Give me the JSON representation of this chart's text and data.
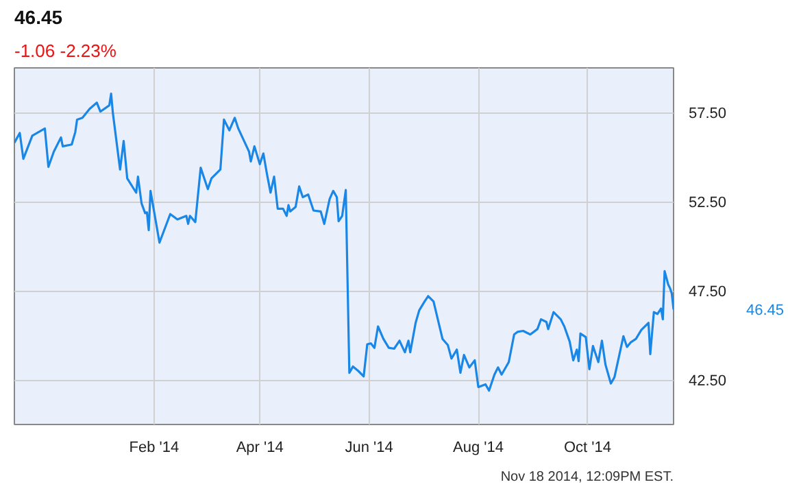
{
  "chart_data": {
    "type": "line",
    "title": "46.45",
    "subtitle": "-1.06  -2.23%",
    "x": [
      "2013-11-15",
      "2013-11-18",
      "2013-11-20",
      "2013-11-25",
      "2013-12-02",
      "2013-12-04",
      "2013-12-07",
      "2013-12-11",
      "2013-12-12",
      "2013-12-17",
      "2013-12-19",
      "2013-12-20",
      "2013-12-23",
      "2013-12-27",
      "2013-12-31",
      "2014-01-02",
      "2014-01-07",
      "2014-01-08",
      "2014-01-09",
      "2014-01-13",
      "2014-01-15",
      "2014-01-17",
      "2014-01-22",
      "2014-01-23",
      "2014-01-25",
      "2014-01-27",
      "2014-01-28",
      "2014-01-29",
      "2014-01-30",
      "2014-02-04",
      "2014-02-10",
      "2014-02-14",
      "2014-02-19",
      "2014-02-20",
      "2014-02-21",
      "2014-02-24",
      "2014-02-27",
      "2014-03-03",
      "2014-03-05",
      "2014-03-10",
      "2014-03-12",
      "2014-03-15",
      "2014-03-18",
      "2014-03-20",
      "2014-03-26",
      "2014-03-27",
      "2014-03-29",
      "2014-04-01",
      "2014-04-03",
      "2014-04-05",
      "2014-04-07",
      "2014-04-09",
      "2014-04-11",
      "2014-04-14",
      "2014-04-16",
      "2014-04-17",
      "2014-04-18",
      "2014-04-21",
      "2014-04-23",
      "2014-04-25",
      "2014-04-28",
      "2014-05-01",
      "2014-05-05",
      "2014-05-07",
      "2014-05-10",
      "2014-05-12",
      "2014-05-14",
      "2014-05-15",
      "2014-05-17",
      "2014-05-19",
      "2014-05-21",
      "2014-05-23",
      "2014-05-26",
      "2014-05-29",
      "2014-05-31",
      "2014-06-02",
      "2014-06-04",
      "2014-06-06",
      "2014-06-09",
      "2014-06-12",
      "2014-06-15",
      "2014-06-18",
      "2014-06-21",
      "2014-06-23",
      "2014-06-24",
      "2014-06-27",
      "2014-06-29",
      "2014-07-02",
      "2014-07-04",
      "2014-07-07",
      "2014-07-12",
      "2014-07-15",
      "2014-07-17",
      "2014-07-20",
      "2014-07-22",
      "2014-07-24",
      "2014-07-27",
      "2014-07-30",
      "2014-08-01",
      "2014-08-05",
      "2014-08-07",
      "2014-08-10",
      "2014-08-12",
      "2014-08-14",
      "2014-08-18",
      "2014-08-21",
      "2014-08-23",
      "2014-08-26",
      "2014-08-30",
      "2014-09-03",
      "2014-09-05",
      "2014-09-08",
      "2014-09-09",
      "2014-09-12",
      "2014-09-16",
      "2014-09-18",
      "2014-09-21",
      "2014-09-23",
      "2014-09-25",
      "2014-09-26",
      "2014-09-27",
      "2014-09-30",
      "2014-10-02",
      "2014-10-04",
      "2014-10-07",
      "2014-10-09",
      "2014-10-11",
      "2014-10-14",
      "2014-10-16",
      "2014-10-21",
      "2014-10-23",
      "2014-10-25",
      "2014-10-28",
      "2014-10-31",
      "2014-11-04",
      "2014-11-05",
      "2014-11-07",
      "2014-11-09",
      "2014-11-11",
      "2014-11-12",
      "2014-11-13",
      "2014-11-15",
      "2014-11-16",
      "2014-11-17",
      "2014-11-18"
    ],
    "series": [
      {
        "color": "#1a87e6",
        "values": [
          55.8,
          56.35,
          54.9,
          56.2,
          56.6,
          54.45,
          55.3,
          56.1,
          55.6,
          55.7,
          56.4,
          57.1,
          57.2,
          57.7,
          58.05,
          57.55,
          57.9,
          58.55,
          57.45,
          54.3,
          55.9,
          53.8,
          53.0,
          53.9,
          52.4,
          51.85,
          51.9,
          50.9,
          53.1,
          50.2,
          51.8,
          51.5,
          51.7,
          51.25,
          51.7,
          51.35,
          54.4,
          53.2,
          53.8,
          54.3,
          57.1,
          56.5,
          57.2,
          56.6,
          55.3,
          54.75,
          55.6,
          54.6,
          55.2,
          54.05,
          53.0,
          53.9,
          52.1,
          52.1,
          51.7,
          52.3,
          51.95,
          52.2,
          53.35,
          52.75,
          52.9,
          52.0,
          51.95,
          51.25,
          52.65,
          53.1,
          52.75,
          51.4,
          51.7,
          53.15,
          42.9,
          43.25,
          43.0,
          42.7,
          44.5,
          44.55,
          44.3,
          45.5,
          44.8,
          44.3,
          44.25,
          44.7,
          44.05,
          44.7,
          44.05,
          45.7,
          46.4,
          46.9,
          47.2,
          46.9,
          44.8,
          44.45,
          43.7,
          44.2,
          42.9,
          43.9,
          43.2,
          43.6,
          42.1,
          42.25,
          41.9,
          42.8,
          43.2,
          42.8,
          43.5,
          45.05,
          45.2,
          45.25,
          45.05,
          45.35,
          45.9,
          45.75,
          45.35,
          46.3,
          45.9,
          45.5,
          44.65,
          43.6,
          44.2,
          43.55,
          45.1,
          44.9,
          43.1,
          44.4,
          43.5,
          44.7,
          43.35,
          42.3,
          42.65,
          44.95,
          44.35,
          44.6,
          44.8,
          45.3,
          45.7,
          43.95,
          46.3,
          46.2,
          46.5,
          45.9,
          48.6,
          47.85,
          47.65,
          47.35,
          46.45
        ]
      }
    ],
    "xlim": [
      "2013-11-15",
      "2014-11-18"
    ],
    "xticks": [
      {
        "value": "2014-02-01",
        "label": "Feb '14"
      },
      {
        "value": "2014-04-01",
        "label": "Apr '14"
      },
      {
        "value": "2014-06-01",
        "label": "Jun '14"
      },
      {
        "value": "2014-08-01",
        "label": "Aug '14"
      },
      {
        "value": "2014-10-01",
        "label": "Oct '14"
      }
    ],
    "ylim": [
      40,
      60
    ],
    "yticks": [
      {
        "value": 42.5,
        "label": "42.50"
      },
      {
        "value": 47.5,
        "label": "47.50"
      },
      {
        "value": 52.5,
        "label": "52.50"
      },
      {
        "value": 57.5,
        "label": "57.50"
      }
    ],
    "grid": true,
    "annotations": [
      "46.45",
      "Nov 18 2014, 12:09PM EST."
    ]
  }
}
